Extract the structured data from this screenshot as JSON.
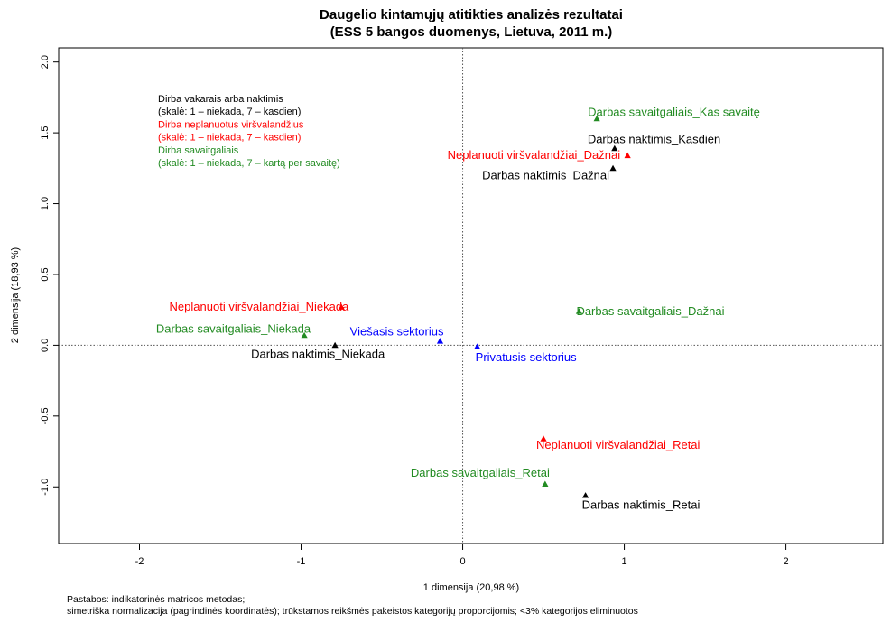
{
  "chart_data": {
    "type": "scatter",
    "title": [
      "Daugelio kintamųjų atitikties analizės rezultatai",
      "(ESS 5 bangos duomenys, Lietuva, 2011 m.)"
    ],
    "xlabel": "1 dimensija (20,98 %)",
    "ylabel": "2 dimensija (18,93 %)",
    "xlim": [
      -2.5,
      2.6
    ],
    "ylim": [
      -1.4,
      2.1
    ],
    "xticks": [
      "-2",
      "-1",
      "0",
      "1",
      "2"
    ],
    "yticks": [
      "-1.0",
      "-0.5",
      "0.0",
      "0.5",
      "1.0",
      "1.5",
      "2.0"
    ],
    "grid": false,
    "reference_lines": {
      "x": 0,
      "y": 0
    },
    "colors": {
      "black": "#000000",
      "red": "#ff0000",
      "green": "#228b22",
      "blue": "#0000ff"
    },
    "points": [
      {
        "label": "Darbas savaitgaliais_Kas savaitę",
        "x": 0.83,
        "y": 1.6,
        "color": "green"
      },
      {
        "label": "Darbas naktimis_Kasdien",
        "x": 0.94,
        "y": 1.39,
        "color": "black"
      },
      {
        "label": "Neplanuoti viršvalandžiai_Dažnai",
        "x": 1.02,
        "y": 1.34,
        "color": "red"
      },
      {
        "label": "Darbas naktimis_Dažnai",
        "x": 0.93,
        "y": 1.25,
        "color": "black"
      },
      {
        "label": "Neplanuoti viršvalandžiai_Niekada",
        "x": -0.75,
        "y": 0.27,
        "color": "red"
      },
      {
        "label": "Darbas savaitgaliais_Dažnai",
        "x": 0.72,
        "y": 0.24,
        "color": "green"
      },
      {
        "label": "Darbas savaitgaliais_Niekada",
        "x": -0.98,
        "y": 0.07,
        "color": "green"
      },
      {
        "label": "Viešasis sektorius",
        "x": -0.14,
        "y": 0.03,
        "color": "blue"
      },
      {
        "label": "Darbas naktimis_Niekada",
        "x": -0.79,
        "y": 0.0,
        "color": "black"
      },
      {
        "label": "Privatusis sektorius",
        "x": 0.09,
        "y": -0.01,
        "color": "blue"
      },
      {
        "label": "Neplanuoti viršvalandžiai_Retai",
        "x": 0.5,
        "y": -0.66,
        "color": "red"
      },
      {
        "label": "Darbas savaitgaliais_Retai",
        "x": 0.51,
        "y": -0.98,
        "color": "green"
      },
      {
        "label": "Darbas naktimis_Retai",
        "x": 0.76,
        "y": -1.06,
        "color": "black"
      }
    ],
    "legend": [
      {
        "text": "Dirba vakarais arba naktimis",
        "color": "black"
      },
      {
        "text": "(skalė: 1 – niekada, 7 – kasdien)",
        "color": "black"
      },
      {
        "text": "Dirba neplanuotus viršvalandžius",
        "color": "red"
      },
      {
        "text": "(skalė: 1 – niekada, 7 – kasdien)",
        "color": "red"
      },
      {
        "text": "Dirba savaitgaliais",
        "color": "green"
      },
      {
        "text": "(skalė: 1 – niekada, 7 – kartą per savaitę)",
        "color": "green"
      }
    ],
    "notes": [
      "Pastabos: indikatorinės matricos metodas;",
      "simetriška normalizacija (pagrindinės koordinatės); trūkstamos reikšmės pakeistos kategorijų proporcijomis; <3% kategorijos eliminuotos"
    ]
  }
}
